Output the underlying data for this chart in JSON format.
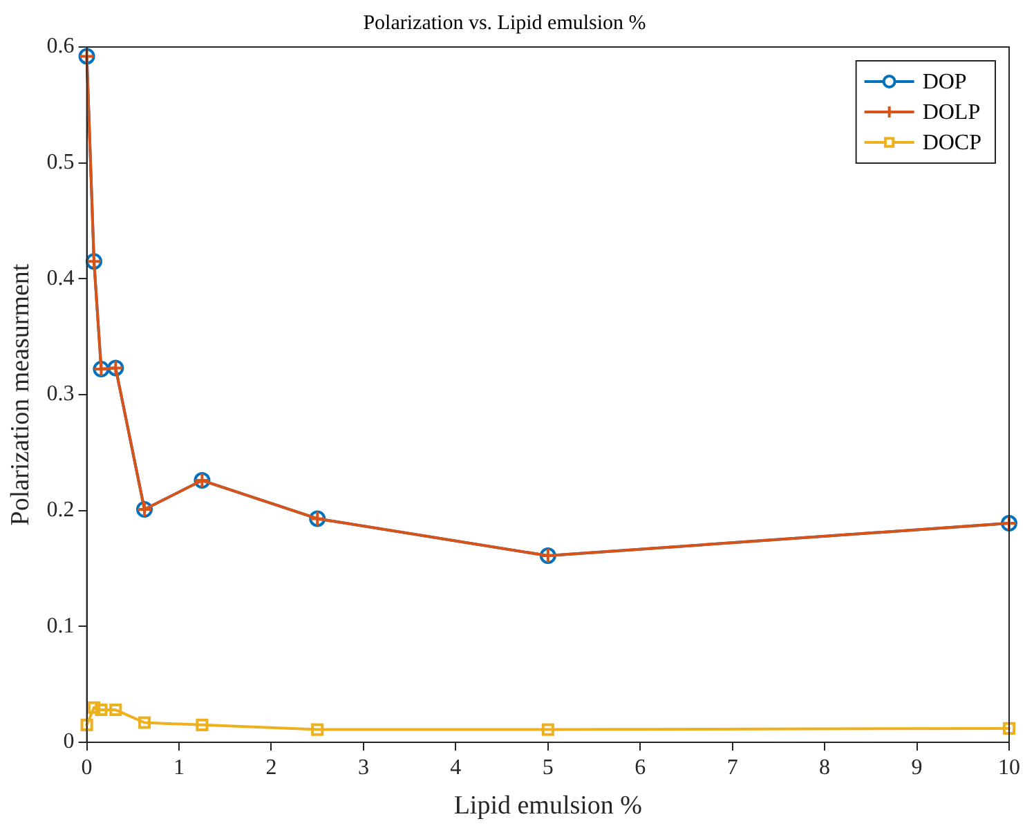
{
  "chart_data": {
    "type": "line",
    "title": "Polarization vs. Lipid emulsion %",
    "xlabel": "Lipid emulsion %",
    "ylabel": "Polarization measurment",
    "x": [
      0,
      0.078,
      0.156,
      0.3125,
      0.625,
      1.25,
      2.5,
      5,
      10
    ],
    "series": [
      {
        "name": "DOP",
        "color": "#0072bd",
        "marker": "circle",
        "values": [
          0.592,
          0.415,
          0.322,
          0.323,
          0.201,
          0.226,
          0.193,
          0.161,
          0.189
        ]
      },
      {
        "name": "DOLP",
        "color": "#d95319",
        "marker": "cross",
        "values": [
          0.592,
          0.415,
          0.322,
          0.323,
          0.201,
          0.226,
          0.193,
          0.161,
          0.189
        ]
      },
      {
        "name": "DOCP",
        "color": "#edb120",
        "marker": "square",
        "values": [
          0.015,
          0.03,
          0.028,
          0.028,
          0.017,
          0.015,
          0.011,
          0.011,
          0.012
        ]
      }
    ],
    "xlim": [
      0,
      10
    ],
    "xticks": [
      0,
      1,
      2,
      3,
      4,
      5,
      6,
      7,
      8,
      9,
      10
    ],
    "ylim": [
      0,
      0.6
    ],
    "yticks": [
      0,
      0.1,
      0.2,
      0.3,
      0.4,
      0.5,
      0.6
    ],
    "grid": false,
    "legend": "top right",
    "line_style": "solid"
  }
}
